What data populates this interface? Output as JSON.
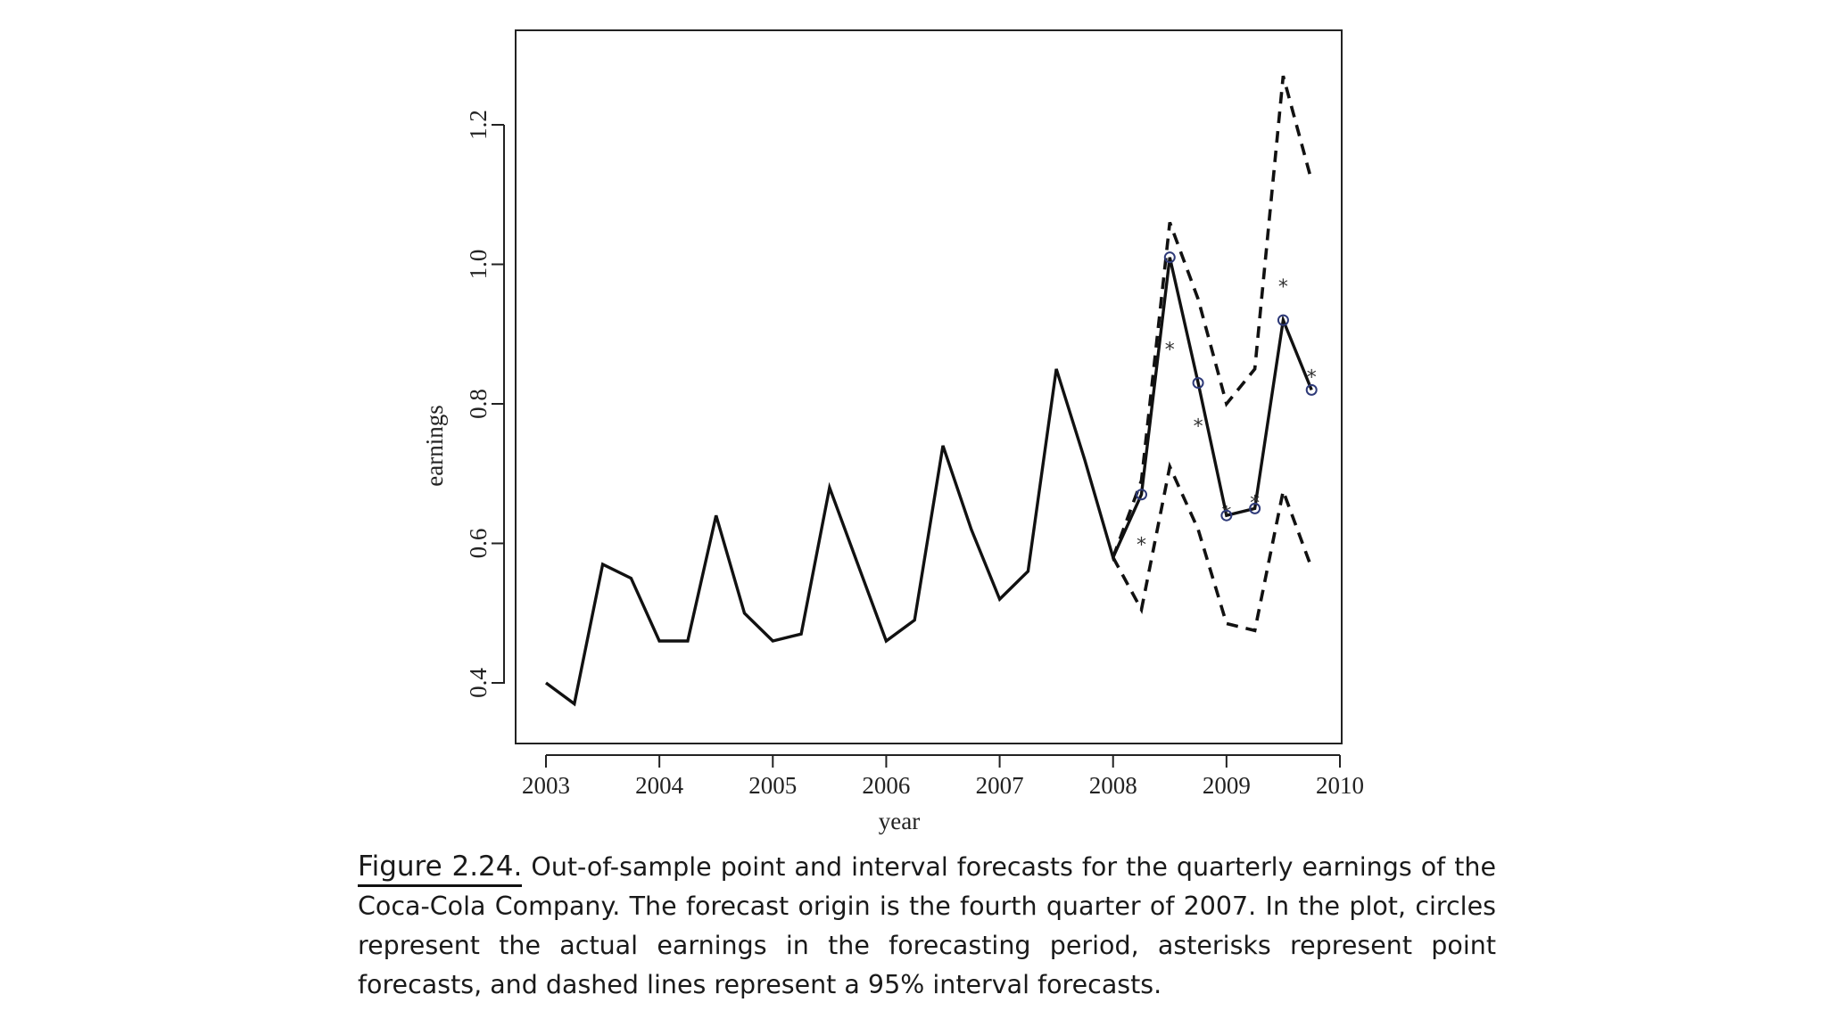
{
  "chart_data": {
    "type": "line",
    "xlabel": "year",
    "ylabel": "earnings",
    "xlim": [
      2002.75,
      2010.0
    ],
    "ylim": [
      0.32,
      1.33
    ],
    "xticks": [
      2003,
      2004,
      2005,
      2006,
      2007,
      2008,
      2009,
      2010
    ],
    "yticks": [
      0.4,
      0.6,
      0.8,
      1.0,
      1.2
    ],
    "ytick_labels": [
      "0.4",
      "0.6",
      "0.8",
      "1.0",
      "1.2"
    ],
    "series": [
      {
        "name": "earnings",
        "style": "solid",
        "x": [
          2003.0,
          2003.25,
          2003.5,
          2003.75,
          2004.0,
          2004.25,
          2004.5,
          2004.75,
          2005.0,
          2005.25,
          2005.5,
          2005.75,
          2006.0,
          2006.25,
          2006.5,
          2006.75,
          2007.0,
          2007.25,
          2007.5,
          2007.75,
          2008.0,
          2008.25,
          2008.5,
          2008.75,
          2009.0,
          2009.25,
          2009.5,
          2009.75
        ],
        "values": [
          0.4,
          0.37,
          0.57,
          0.55,
          0.46,
          0.46,
          0.64,
          0.5,
          0.46,
          0.47,
          0.68,
          0.57,
          0.46,
          0.49,
          0.74,
          0.62,
          0.52,
          0.56,
          0.85,
          0.72,
          0.58,
          0.67,
          1.01,
          0.83,
          0.64,
          0.65,
          0.92,
          0.82
        ]
      },
      {
        "name": "upper 95% interval",
        "style": "dashed",
        "x": [
          2008.0,
          2008.25,
          2008.5,
          2008.75,
          2009.0,
          2009.25,
          2009.5,
          2009.75
        ],
        "values": [
          0.58,
          0.69,
          1.06,
          0.95,
          0.8,
          0.85,
          1.27,
          1.12
        ]
      },
      {
        "name": "lower 95% interval",
        "style": "dashed",
        "x": [
          2008.0,
          2008.25,
          2008.5,
          2008.75,
          2009.0,
          2009.25,
          2009.5,
          2009.75
        ],
        "values": [
          0.58,
          0.505,
          0.71,
          0.62,
          0.485,
          0.475,
          0.675,
          0.565
        ]
      },
      {
        "name": "point forecasts",
        "style": "asterisk",
        "x": [
          2008.25,
          2008.5,
          2008.75,
          2009.0,
          2009.25,
          2009.5,
          2009.75
        ],
        "values": [
          0.6,
          0.88,
          0.77,
          0.645,
          0.66,
          0.97,
          0.84
        ]
      },
      {
        "name": "actual earnings (forecast period)",
        "style": "circle",
        "x": [
          2008.25,
          2008.5,
          2008.75,
          2009.0,
          2009.25,
          2009.5,
          2009.75
        ],
        "values": [
          0.67,
          1.01,
          0.83,
          0.64,
          0.65,
          0.92,
          0.82
        ]
      }
    ]
  },
  "caption": {
    "label": "Figure 2.24.",
    "text": "Out-of-sample point and interval forecasts for the quarterly earnings of the Coca-Cola Company. The forecast origin is the fourth quarter of 2007. In the plot, circles represent the actual earnings in the forecasting period, asterisks represent point forecasts, and dashed lines represent a 95% interval forecasts."
  },
  "colors": {
    "line": "#111111",
    "circle": "#2e3a78",
    "asterisk": "#333333",
    "axis": "#222222"
  }
}
